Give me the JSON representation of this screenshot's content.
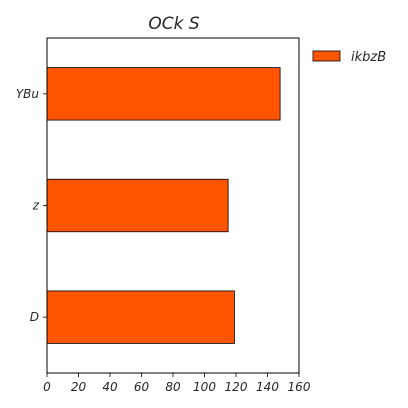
{
  "chart_data": {
    "type": "bar",
    "orientation": "horizontal",
    "title": "OCk S",
    "xlabel": "",
    "ylabel": "",
    "categories": [
      "YBu",
      "z",
      "D"
    ],
    "series": [
      {
        "name": "ikbzB",
        "values": [
          148,
          115,
          119
        ],
        "color": "#ff5500"
      }
    ],
    "xlim": [
      0,
      160
    ],
    "xticks": [
      0,
      20,
      40,
      60,
      80,
      100,
      120,
      140,
      160
    ],
    "grid": false,
    "legend": "top-right (outside plot area)"
  }
}
